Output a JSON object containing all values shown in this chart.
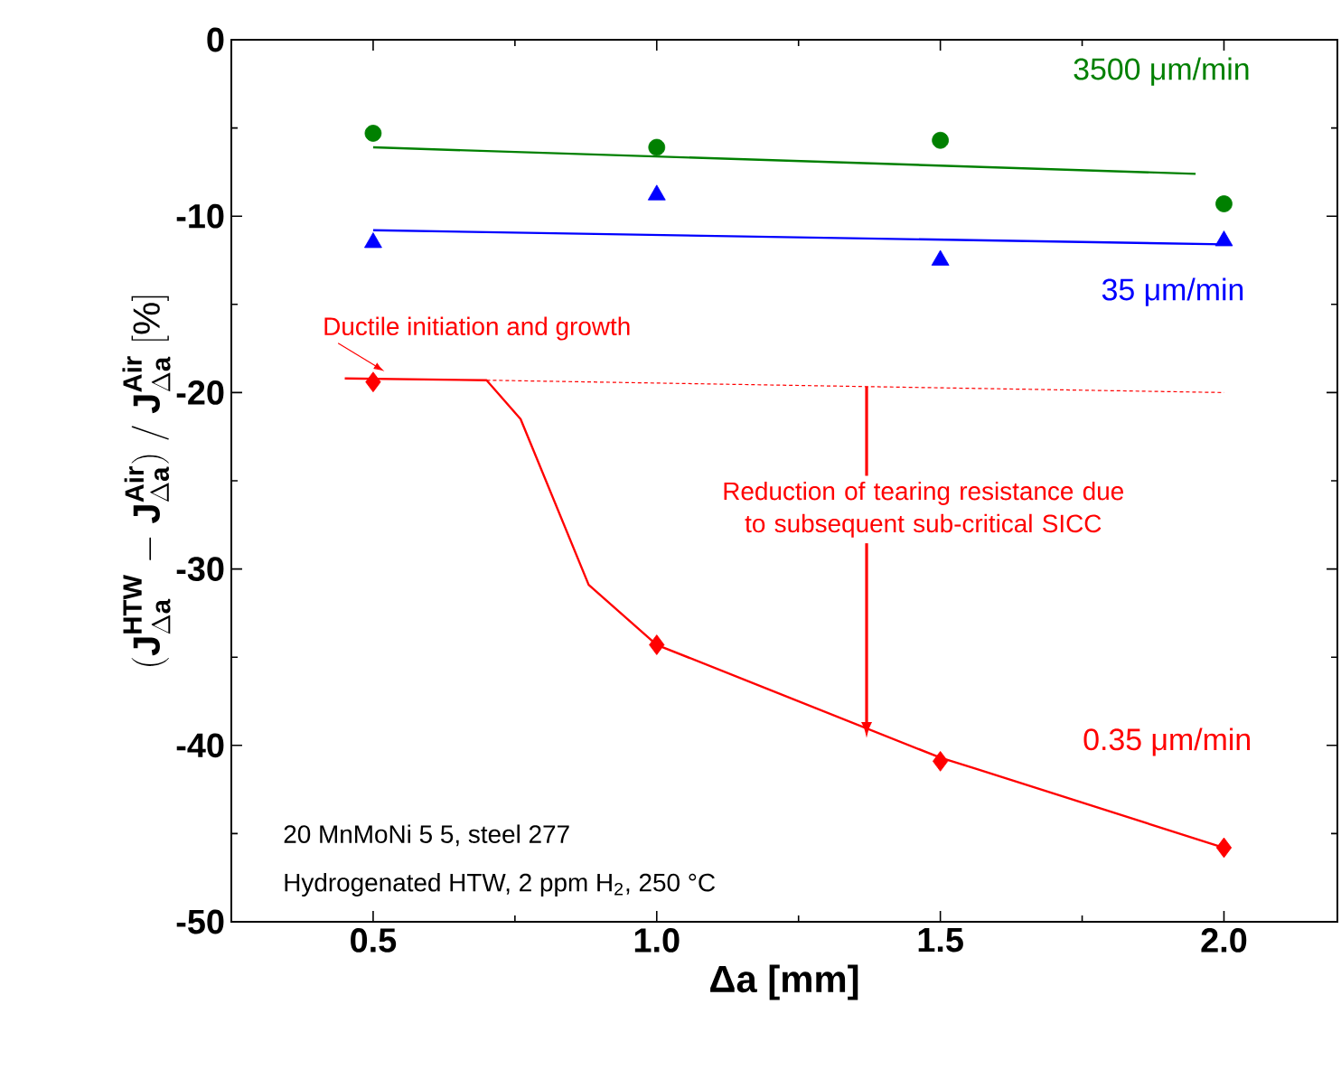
{
  "chart_data": {
    "type": "scatter",
    "xlabel": "Δa [mm]",
    "ylabel": "\\mathbf{(J}^{\\mathbf{HTW}}_{\\Delta\\mathbf{a}}\\mathbf{\\ -\\ J}^{\\mathbf{Air}}_{\\Delta\\mathbf{a}}\\mathbf{)\\ /\\ J}^{\\mathbf{Air}}_{\\Delta\\mathbf{a}}\\ \\mathbf{[\\%]}",
    "xlim": [
      0.25,
      2.2
    ],
    "ylim": [
      -50,
      0
    ],
    "xticks": [
      {
        "value": 0.5,
        "label": "0.5"
      },
      {
        "value": 1.0,
        "label": "1.0"
      },
      {
        "value": 1.5,
        "label": "1.5"
      },
      {
        "value": 2.0,
        "label": "2.0"
      }
    ],
    "yticks": [
      -50,
      -40,
      -30,
      -20,
      -10,
      0
    ],
    "series": [
      {
        "name": "3500 μm/min",
        "type": "scatter",
        "marker": "circle",
        "color": "#008000",
        "x": [
          0.5,
          1.0,
          1.5,
          2.0
        ],
        "values": [
          -5.3,
          -6.1,
          -5.7,
          -9.3
        ]
      },
      {
        "name": "35 μm/min",
        "type": "scatter",
        "marker": "triangle",
        "color": "#0000ff",
        "x": [
          0.5,
          1.0,
          1.5,
          2.0
        ],
        "values": [
          -11.5,
          -8.8,
          -12.5,
          -11.4
        ]
      },
      {
        "name": "0.35 μm/min",
        "type": "scatter",
        "marker": "diamond",
        "color": "#ff0000",
        "x": [
          0.5,
          1.0,
          1.5,
          2.0
        ],
        "values": [
          -19.4,
          -34.3,
          -40.9,
          -45.8
        ]
      },
      {
        "type": "line",
        "marker": "none",
        "line_style": "solid",
        "color": "#008000",
        "x": [
          0.5,
          1.95
        ],
        "values": [
          -6.1,
          -7.6
        ]
      },
      {
        "type": "line",
        "marker": "none",
        "line_style": "solid",
        "color": "#0000ff",
        "x": [
          0.5,
          2.0
        ],
        "values": [
          -10.8,
          -11.6
        ]
      },
      {
        "type": "line",
        "marker": "none",
        "line_style": "solid",
        "color": "#ff0000",
        "x": [
          0.45,
          0.7,
          0.76,
          0.88,
          1.0,
          1.5,
          1.56,
          2.0
        ],
        "values": [
          -19.2,
          -19.3,
          -21.5,
          -30.9,
          -34.3,
          -40.7,
          -41.3,
          -45.8
        ]
      },
      {
        "type": "line",
        "marker": "none",
        "line_style": "dashed",
        "color": "#ff0000",
        "x": [
          0.7,
          2.0
        ],
        "values": [
          -19.3,
          -20.0
        ]
      }
    ],
    "annotations": [
      {
        "text": "Ductile initiation and growth",
        "x": 0.5,
        "y": -19.4
      },
      {
        "text": "Reduction of tearing resistance due to subsequent sub-critical SICC",
        "x": 1.37,
        "y": -39.6
      },
      "20 MnMoNi 5 5, steel 277",
      "Hydrogenated HTW, 2 ppm H$_{2}$, 250 °C"
    ]
  }
}
